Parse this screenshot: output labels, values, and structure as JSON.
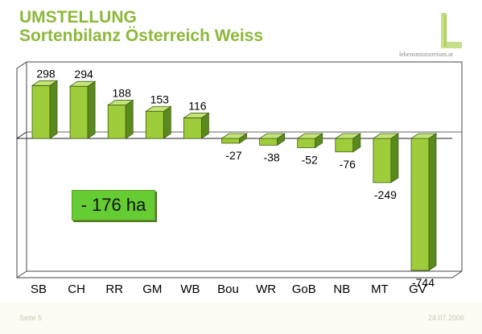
{
  "header": {
    "title_line1": "UMSTELLUNG",
    "title_line2": "Sortenbilanz Österreich Weiss",
    "logo_text": "lebensministerium.at",
    "logo_icon": "L-logo-icon"
  },
  "summary_box": "- 176 ha",
  "footer": {
    "left": "Seite 5",
    "right": "24.07.2006"
  },
  "colors": {
    "bar_front": "#9fcc3b",
    "bar_top": "#c4e47a",
    "bar_side": "#5a8a1e",
    "title": "#8cb83a",
    "summary_bg": "#66cc33"
  },
  "chart_data": {
    "type": "bar",
    "categories": [
      "SB",
      "CH",
      "RR",
      "GM",
      "WB",
      "Bou",
      "WR",
      "GoB",
      "NB",
      "MT",
      "GV"
    ],
    "values": [
      298,
      294,
      188,
      153,
      116,
      -27,
      -38,
      -52,
      -76,
      -249,
      -744
    ],
    "data_labels": [
      "298",
      "294",
      "188",
      "153",
      "116",
      "-27",
      "-38",
      "-52",
      "-76",
      "-249",
      "-744"
    ],
    "title": "",
    "xlabel": "",
    "ylabel": "",
    "ylim": [
      -744,
      298
    ],
    "grid": false,
    "legend": "none",
    "style": "3d"
  }
}
